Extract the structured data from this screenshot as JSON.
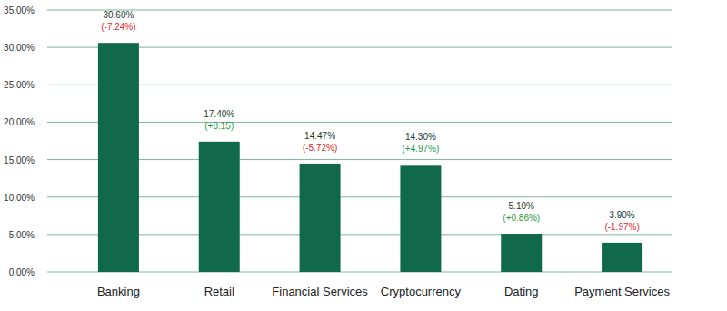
{
  "chart_data": {
    "type": "bar",
    "categories": [
      "Banking",
      "Retail",
      "Financial Services",
      "Cryptocurrency",
      "Dating",
      "Payment Services"
    ],
    "values": [
      30.6,
      17.4,
      14.47,
      14.3,
      5.1,
      3.9
    ],
    "value_labels": [
      "30.60%",
      "17.40%",
      "14.47%",
      "14.30%",
      "5.10%",
      "3.90%"
    ],
    "changes": [
      -7.24,
      8.15,
      -5.72,
      4.97,
      0.86,
      -1.97
    ],
    "change_labels": [
      "(-7.24%)",
      "(+8.15)",
      "(-5.72%)",
      "(+4.97%)",
      "(+0.86%)",
      "(-1.97%)"
    ],
    "color": "#11694c",
    "ylim": [
      0,
      35
    ],
    "yticks": [
      {
        "value": 0,
        "label": "0.00%"
      },
      {
        "value": 5,
        "label": "5.00%"
      },
      {
        "value": 10,
        "label": "10.00%"
      },
      {
        "value": 15,
        "label": "15.00%"
      },
      {
        "value": 20,
        "label": "20.00%"
      },
      {
        "value": 25,
        "label": "25.00%"
      },
      {
        "value": 30,
        "label": "30.00%"
      },
      {
        "value": 35,
        "label": "35.00%"
      }
    ],
    "grid": true,
    "data_labels": true
  }
}
